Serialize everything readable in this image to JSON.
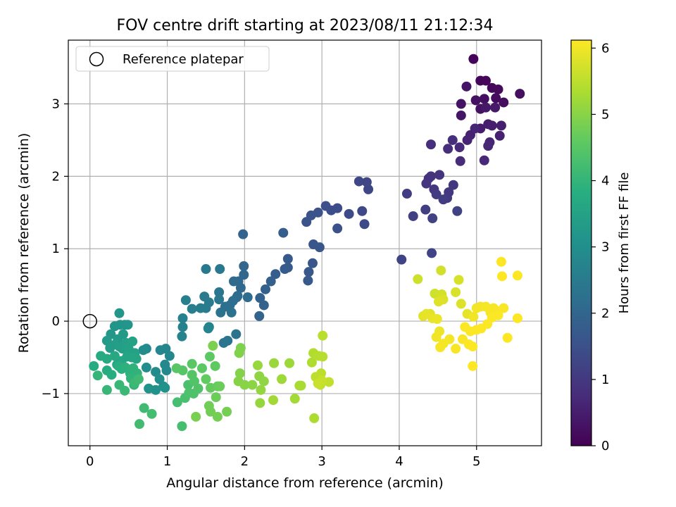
{
  "chart_data": {
    "type": "scatter",
    "title": "FOV centre drift starting at 2023/08/11 21:12:34",
    "xlabel": "Angular distance from reference (arcmin)",
    "ylabel": "Rotation from reference (arcmin)",
    "xlim": [
      -0.28,
      5.84
    ],
    "ylim": [
      -1.72,
      3.88
    ],
    "xticks": [
      0,
      1,
      2,
      3,
      4,
      5
    ],
    "yticks": [
      -1,
      0,
      1,
      2,
      3
    ],
    "grid": true,
    "legend": {
      "position": "top-left",
      "entries": [
        "Reference platepar"
      ]
    },
    "reference_point": {
      "x": 0,
      "y": 0,
      "label": "Reference platepar"
    },
    "colorbar": {
      "label": "Hours from first FF file",
      "colormap": "viridis",
      "range": [
        0,
        6.12
      ],
      "ticks": [
        0,
        1,
        2,
        3,
        4,
        5,
        6
      ]
    },
    "points": [
      [
        4.96,
        3.62,
        0.05
      ],
      [
        5.05,
        3.32,
        0.08
      ],
      [
        5.12,
        3.32,
        0.1
      ],
      [
        5.2,
        3.22,
        0.12
      ],
      [
        5.28,
        3.2,
        0.15
      ],
      [
        5.25,
        3.08,
        0.18
      ],
      [
        5.35,
        3.02,
        0.2
      ],
      [
        5.56,
        3.14,
        0.22
      ],
      [
        5.1,
        3.07,
        0.25
      ],
      [
        4.99,
        3.05,
        0.28
      ],
      [
        5.05,
        2.93,
        0.3
      ],
      [
        4.8,
        3.0,
        0.32
      ],
      [
        4.8,
        2.84,
        0.35
      ],
      [
        4.87,
        3.24,
        0.37
      ],
      [
        5.12,
        2.95,
        0.4
      ],
      [
        5.24,
        2.95,
        0.42
      ],
      [
        5.15,
        2.72,
        0.45
      ],
      [
        5.05,
        2.66,
        0.47
      ],
      [
        5.2,
        2.7,
        0.5
      ],
      [
        5.32,
        2.7,
        0.52
      ],
      [
        5.3,
        2.56,
        0.55
      ],
      [
        4.92,
        2.57,
        0.57
      ],
      [
        4.88,
        2.5,
        0.6
      ],
      [
        4.98,
        2.66,
        0.62
      ],
      [
        5.17,
        2.47,
        0.65
      ],
      [
        5.15,
        2.42,
        0.67
      ],
      [
        5.1,
        2.22,
        0.7
      ],
      [
        4.78,
        2.4,
        0.72
      ],
      [
        4.79,
        2.21,
        0.75
      ],
      [
        4.63,
        2.38,
        0.78
      ],
      [
        4.41,
        2.44,
        0.8
      ],
      [
        4.69,
        2.5,
        0.83
      ],
      [
        4.38,
        1.97,
        0.85
      ],
      [
        4.41,
        2.0,
        0.88
      ],
      [
        4.52,
        2.02,
        0.9
      ],
      [
        4.35,
        1.9,
        0.93
      ],
      [
        4.45,
        1.82,
        0.95
      ],
      [
        4.64,
        1.78,
        0.98
      ],
      [
        4.7,
        1.88,
        1.0
      ],
      [
        4.62,
        1.7,
        1.02
      ],
      [
        4.48,
        1.75,
        1.05
      ],
      [
        4.57,
        1.68,
        1.07
      ],
      [
        4.1,
        1.76,
        1.1
      ],
      [
        4.34,
        1.54,
        1.12
      ],
      [
        4.18,
        1.45,
        1.15
      ],
      [
        4.43,
        1.42,
        1.17
      ],
      [
        4.75,
        1.52,
        1.2
      ],
      [
        4.42,
        0.94,
        1.22
      ],
      [
        4.03,
        0.85,
        1.25
      ],
      [
        3.6,
        1.82,
        1.28
      ],
      [
        3.58,
        1.92,
        1.3
      ],
      [
        3.48,
        1.93,
        1.32
      ],
      [
        3.52,
        1.52,
        1.35
      ],
      [
        3.55,
        1.34,
        1.37
      ],
      [
        3.35,
        1.48,
        1.4
      ],
      [
        3.2,
        1.56,
        1.42
      ],
      [
        3.12,
        1.53,
        1.45
      ],
      [
        3.05,
        1.59,
        1.47
      ],
      [
        3.2,
        1.28,
        1.5
      ],
      [
        2.95,
        1.5,
        1.52
      ],
      [
        2.86,
        1.46,
        1.55
      ],
      [
        2.8,
        1.37,
        1.57
      ],
      [
        2.89,
        1.06,
        1.6
      ],
      [
        2.97,
        1.02,
        1.62
      ],
      [
        2.88,
        0.8,
        1.65
      ],
      [
        2.83,
        0.68,
        1.67
      ],
      [
        2.82,
        0.56,
        1.7
      ],
      [
        2.56,
        0.86,
        1.72
      ],
      [
        2.52,
        0.72,
        1.75
      ],
      [
        2.56,
        0.74,
        1.77
      ],
      [
        2.4,
        0.65,
        1.8
      ],
      [
        2.5,
        1.22,
        1.82
      ],
      [
        2.34,
        0.55,
        1.85
      ],
      [
        2.27,
        0.44,
        1.87
      ],
      [
        2.2,
        0.32,
        1.9
      ],
      [
        2.25,
        0.22,
        1.92
      ],
      [
        2.19,
        0.07,
        1.95
      ],
      [
        1.98,
        1.2,
        1.97
      ],
      [
        1.99,
        0.76,
        2.0
      ],
      [
        1.99,
        0.64,
        2.02
      ],
      [
        1.92,
        0.55,
        2.05
      ],
      [
        1.95,
        0.46,
        2.07
      ],
      [
        1.86,
        0.55,
        2.1
      ],
      [
        1.91,
        0.35,
        2.12
      ],
      [
        1.9,
        0.33,
        2.15
      ],
      [
        2.04,
        0.33,
        2.17
      ],
      [
        1.85,
        0.28,
        2.2
      ],
      [
        1.81,
        0.22,
        2.22
      ],
      [
        1.75,
        0.2,
        2.25
      ],
      [
        1.69,
        0.12,
        2.27
      ],
      [
        1.83,
        0.12,
        2.3
      ],
      [
        1.89,
        -0.18,
        2.32
      ],
      [
        1.78,
        -0.27,
        2.35
      ],
      [
        1.73,
        -0.3,
        2.37
      ],
      [
        1.67,
        0.4,
        2.4
      ],
      [
        1.67,
        0.3,
        2.42
      ],
      [
        1.68,
        0.72,
        2.45
      ],
      [
        1.5,
        0.72,
        2.47
      ],
      [
        1.48,
        0.34,
        2.5
      ],
      [
        1.54,
        0.26,
        2.52
      ],
      [
        1.5,
        0.18,
        2.55
      ],
      [
        1.43,
        0.18,
        2.57
      ],
      [
        1.32,
        0.17,
        2.6
      ],
      [
        1.24,
        0.29,
        2.62
      ],
      [
        1.2,
        0.04,
        2.65
      ],
      [
        1.2,
        -0.08,
        2.67
      ],
      [
        1.19,
        -0.21,
        2.7
      ],
      [
        1.54,
        -0.08,
        2.72
      ],
      [
        1.53,
        -0.1,
        2.75
      ],
      [
        0.98,
        -0.38,
        2.77
      ],
      [
        0.91,
        -0.4,
        2.8
      ],
      [
        1.03,
        -0.48,
        2.82
      ],
      [
        0.97,
        -0.6,
        2.85
      ],
      [
        0.99,
        -0.68,
        2.87
      ],
      [
        0.85,
        -0.7,
        2.9
      ],
      [
        0.73,
        -0.38,
        2.92
      ],
      [
        0.69,
        -0.4,
        2.95
      ],
      [
        0.73,
        -0.64,
        2.97
      ],
      [
        0.9,
        -0.8,
        3.0
      ],
      [
        0.95,
        -0.9,
        3.02
      ],
      [
        0.97,
        -0.92,
        3.05
      ],
      [
        0.85,
        -0.95,
        3.07
      ],
      [
        0.76,
        -0.93,
        3.1
      ],
      [
        0.45,
        -0.05,
        3.12
      ],
      [
        0.39,
        -0.05,
        3.15
      ],
      [
        0.32,
        -0.07,
        3.17
      ],
      [
        0.49,
        -0.05,
        3.2
      ],
      [
        0.38,
        0.11,
        3.22
      ],
      [
        0.27,
        -0.18,
        3.25
      ],
      [
        0.36,
        -0.25,
        3.27
      ],
      [
        0.43,
        -0.18,
        3.3
      ],
      [
        0.22,
        -0.27,
        3.32
      ],
      [
        0.26,
        -0.37,
        3.35
      ],
      [
        0.33,
        -0.32,
        3.37
      ],
      [
        0.38,
        -0.35,
        3.4
      ],
      [
        0.42,
        -0.38,
        3.42
      ],
      [
        0.47,
        -0.3,
        3.45
      ],
      [
        0.5,
        -0.38,
        3.47
      ],
      [
        0.55,
        -0.28,
        3.5
      ],
      [
        0.58,
        -0.44,
        3.52
      ],
      [
        0.6,
        -0.52,
        3.55
      ],
      [
        0.54,
        -0.5,
        3.57
      ],
      [
        0.48,
        -0.49,
        3.6
      ],
      [
        0.41,
        -0.55,
        3.62
      ],
      [
        0.35,
        -0.6,
        3.65
      ],
      [
        0.32,
        -0.48,
        3.67
      ],
      [
        0.22,
        -0.52,
        3.7
      ],
      [
        0.14,
        -0.48,
        3.72
      ],
      [
        0.05,
        -0.62,
        3.75
      ],
      [
        0.22,
        -0.68,
        3.77
      ],
      [
        0.28,
        -0.74,
        3.8
      ],
      [
        0.37,
        -0.62,
        3.82
      ],
      [
        0.41,
        -0.66,
        3.85
      ],
      [
        0.46,
        -0.64,
        3.87
      ],
      [
        0.52,
        -0.72,
        3.9
      ],
      [
        0.56,
        -0.65,
        3.92
      ],
      [
        0.61,
        -0.72,
        3.95
      ],
      [
        0.53,
        -0.79,
        3.97
      ],
      [
        0.57,
        -0.88,
        4.0
      ],
      [
        0.1,
        -0.75,
        4.02
      ],
      [
        0.22,
        -0.95,
        4.05
      ],
      [
        0.38,
        -0.88,
        4.07
      ],
      [
        0.45,
        -0.96,
        4.1
      ],
      [
        0.58,
        -0.85,
        4.12
      ],
      [
        0.63,
        -0.8,
        4.15
      ],
      [
        0.7,
        -1.2,
        4.17
      ],
      [
        0.64,
        -1.42,
        4.2
      ],
      [
        0.8,
        -1.28,
        4.22
      ],
      [
        1.19,
        -1.45,
        4.25
      ],
      [
        1.13,
        -1.12,
        4.27
      ],
      [
        1.23,
        -1.06,
        4.3
      ],
      [
        1.27,
        -0.88,
        4.32
      ],
      [
        1.28,
        -0.99,
        4.35
      ],
      [
        1.34,
        -1.0,
        4.37
      ],
      [
        1.4,
        -0.93,
        4.4
      ],
      [
        1.35,
        -0.83,
        4.42
      ],
      [
        1.32,
        -0.74,
        4.45
      ],
      [
        1.2,
        -0.68,
        4.47
      ],
      [
        1.12,
        -0.65,
        4.5
      ],
      [
        1.32,
        -0.59,
        4.52
      ],
      [
        1.45,
        -0.65,
        4.55
      ],
      [
        1.55,
        -0.49,
        4.57
      ],
      [
        1.62,
        -0.62,
        4.6
      ],
      [
        1.5,
        -0.8,
        4.62
      ],
      [
        1.56,
        -0.92,
        4.65
      ],
      [
        1.65,
        -0.9,
        4.67
      ],
      [
        1.68,
        -0.9,
        4.7
      ],
      [
        1.63,
        -1.05,
        4.72
      ],
      [
        1.54,
        -1.17,
        4.75
      ],
      [
        1.56,
        -1.25,
        4.77
      ],
      [
        1.65,
        -1.32,
        4.8
      ],
      [
        1.77,
        -1.25,
        4.82
      ],
      [
        1.37,
        -1.32,
        4.85
      ],
      [
        1.59,
        -0.34,
        4.87
      ],
      [
        1.95,
        -0.37,
        4.9
      ],
      [
        1.93,
        -0.44,
        4.92
      ],
      [
        1.94,
        -0.72,
        4.95
      ],
      [
        1.92,
        -0.83,
        4.97
      ],
      [
        2.0,
        -0.88,
        5.0
      ],
      [
        2.1,
        -0.88,
        5.02
      ],
      [
        2.19,
        -0.76,
        5.05
      ],
      [
        2.25,
        -0.83,
        5.07
      ],
      [
        2.21,
        -0.95,
        5.1
      ],
      [
        2.2,
        -1.13,
        5.12
      ],
      [
        2.17,
        -0.61,
        5.15
      ],
      [
        2.38,
        -0.58,
        5.17
      ],
      [
        2.58,
        -0.58,
        5.2
      ],
      [
        2.48,
        -0.8,
        5.22
      ],
      [
        2.37,
        -1.09,
        5.25
      ],
      [
        2.65,
        -1.07,
        5.27
      ],
      [
        2.71,
        -0.89,
        5.3
      ],
      [
        2.73,
        -0.89,
        5.32
      ],
      [
        2.9,
        -1.34,
        5.35
      ],
      [
        2.87,
        -0.57,
        5.37
      ],
      [
        2.89,
        -0.44,
        5.4
      ],
      [
        2.96,
        -0.48,
        5.42
      ],
      [
        3.01,
        -0.49,
        5.45
      ],
      [
        3.01,
        -0.2,
        5.47
      ],
      [
        2.92,
        -0.77,
        5.5
      ],
      [
        2.99,
        -0.72,
        5.52
      ],
      [
        3.09,
        -0.84,
        5.55
      ],
      [
        2.98,
        -0.88,
        5.57
      ],
      [
        3.0,
        -0.82,
        5.6
      ],
      [
        2.95,
        -0.86,
        5.62
      ],
      [
        4.24,
        0.58,
        5.65
      ],
      [
        4.46,
        0.38,
        5.67
      ],
      [
        4.54,
        0.7,
        5.7
      ],
      [
        4.55,
        0.37,
        5.72
      ],
      [
        4.77,
        0.57,
        5.75
      ],
      [
        4.73,
        0.4,
        5.77
      ],
      [
        4.57,
        0.3,
        5.8
      ],
      [
        4.51,
        0.27,
        5.82
      ],
      [
        4.4,
        0.1,
        5.85
      ],
      [
        4.31,
        0.07,
        5.87
      ],
      [
        4.35,
        0.1,
        5.9
      ],
      [
        4.43,
        0.04,
        5.92
      ],
      [
        4.49,
        0.03,
        5.95
      ],
      [
        4.52,
        -0.14,
        5.97
      ],
      [
        4.48,
        -0.22,
        6.0
      ],
      [
        4.65,
        -0.25,
        6.02
      ],
      [
        4.57,
        -0.31,
        6.04
      ],
      [
        4.53,
        -0.36,
        6.05
      ],
      [
        4.73,
        -0.38,
        6.06
      ],
      [
        4.82,
        -0.25,
        6.07
      ],
      [
        4.8,
        0.24,
        5.8
      ],
      [
        4.88,
        0.1,
        5.9
      ],
      [
        4.96,
        0.06,
        6.0
      ],
      [
        5.0,
        0.18,
        6.02
      ],
      [
        5.05,
        0.2,
        6.03
      ],
      [
        5.12,
        0.2,
        6.04
      ],
      [
        5.18,
        0.12,
        6.05
      ],
      [
        5.22,
        0.18,
        6.06
      ],
      [
        5.26,
        0.14,
        6.07
      ],
      [
        5.35,
        0.18,
        6.08
      ],
      [
        5.28,
        0.08,
        6.09
      ],
      [
        5.2,
        0.05,
        6.1
      ],
      [
        5.14,
        -0.04,
        6.1
      ],
      [
        5.06,
        -0.1,
        6.11
      ],
      [
        5.0,
        -0.12,
        6.11
      ],
      [
        4.92,
        -0.14,
        6.11
      ],
      [
        4.85,
        -0.08,
        6.11
      ],
      [
        4.9,
        -0.32,
        6.11
      ],
      [
        4.95,
        -0.35,
        6.11
      ],
      [
        4.95,
        -0.62,
        6.12
      ],
      [
        5.4,
        -0.23,
        6.12
      ],
      [
        5.53,
        0.04,
        6.12
      ],
      [
        5.33,
        0.62,
        6.12
      ],
      [
        5.32,
        0.82,
        6.12
      ],
      [
        5.53,
        0.63,
        6.12
      ]
    ]
  }
}
